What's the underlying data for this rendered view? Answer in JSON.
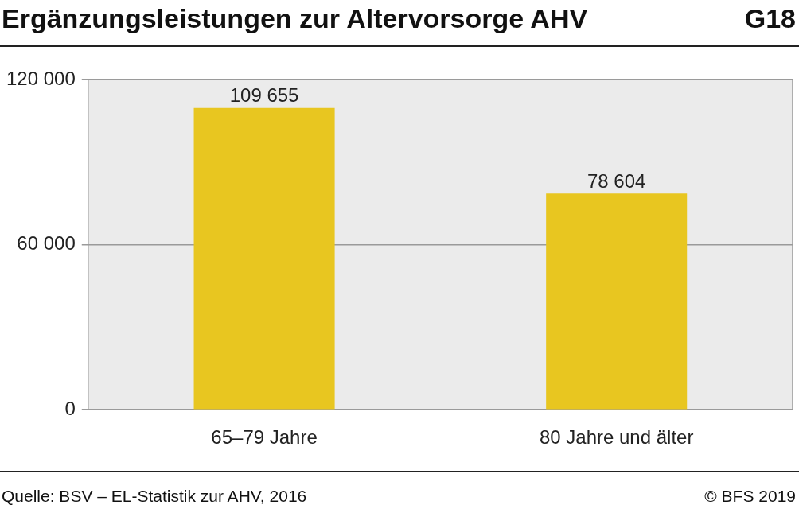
{
  "chart_data": {
    "type": "bar",
    "title": "Ergänzungsleistungen zur Altervorsorge AHV",
    "categories": [
      "65–79 Jahre",
      "80 Jahre und älter"
    ],
    "values": [
      109655,
      78604
    ],
    "value_labels": [
      "109 655",
      "78 604"
    ],
    "color": "#e8c620",
    "ylim": [
      0,
      120000
    ],
    "yticks": [
      {
        "value": 0,
        "label": "0"
      },
      {
        "value": 60000,
        "label": "60 000"
      },
      {
        "value": 120000,
        "label": "120 000"
      }
    ],
    "grid": "y",
    "legend": false,
    "annotations": [
      "G18",
      "Quelle: BSV – EL-Statistik zur AHV, 2016",
      "© BFS 2019"
    ]
  }
}
